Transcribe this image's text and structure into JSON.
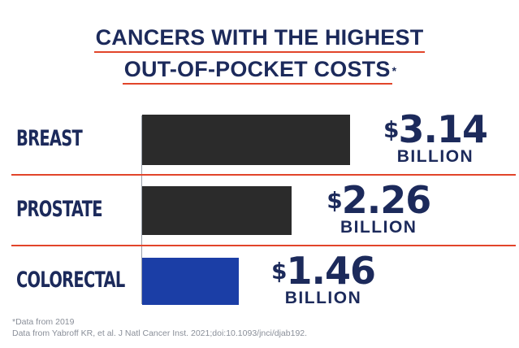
{
  "title_line1": "CANCERS WITH THE HIGHEST",
  "title_line2": "OUT-OF-POCKET COSTS",
  "title_asterisk": "*",
  "colors": {
    "navy": "#1c2a5b",
    "accent_red": "#e2452a",
    "bar_dark": "#2b2b2b",
    "bar_highlight": "#1b3ea6"
  },
  "chart_data": {
    "type": "bar",
    "orientation": "horizontal",
    "categories": [
      "BREAST",
      "PROSTATE",
      "COLORECTAL"
    ],
    "values": [
      3.14,
      2.26,
      1.46
    ],
    "value_labels": [
      "3.14",
      "2.26",
      "1.46"
    ],
    "value_prefix": "$",
    "value_unit": "BILLION",
    "bar_colors": [
      "#2b2b2b",
      "#2b2b2b",
      "#1b3ea6"
    ]
  },
  "footnotes": {
    "note1": "*Data from 2019",
    "note2": "Data from Yabroff KR, et al. J Natl Cancer Inst. 2021;doi:10.1093/jnci/djab192."
  }
}
